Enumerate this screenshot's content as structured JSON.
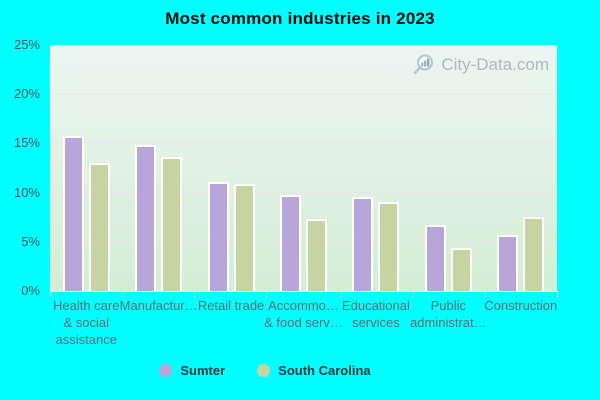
{
  "title": "Most common industries in 2023",
  "watermark": "City-Data.com",
  "colors": {
    "background": "#00ffff",
    "plot_gradient_top": "#ecf5f2",
    "plot_gradient_bottom": "#d3eed5",
    "gridline": "#ece3ee",
    "bar_border": "#ffffff",
    "sumter": "#b8a5da",
    "south_carolina": "#c7d3a1",
    "y_label_text": "#46565f",
    "x_label_text": "#5e6e75",
    "legend_text": "#2e3a40",
    "watermark_text": "#aab6bd"
  },
  "y_axis": {
    "max": 25,
    "ticks": [
      {
        "label": "0%",
        "value": 0
      },
      {
        "label": "5%",
        "value": 5
      },
      {
        "label": "10%",
        "value": 10
      },
      {
        "label": "15%",
        "value": 15
      },
      {
        "label": "20%",
        "value": 20
      },
      {
        "label": "25%",
        "value": 25
      }
    ]
  },
  "legend": {
    "items": [
      {
        "label": "Sumter",
        "color": "#b8a5da"
      },
      {
        "label": "South Carolina",
        "color": "#c7d3a1"
      }
    ]
  },
  "chart_data": {
    "type": "bar",
    "title": "Most common industries in 2023",
    "categories": [
      "Health care & social assistance",
      "Manufactur…",
      "Retail trade",
      "Accommo… & food serv…",
      "Educational services",
      "Public administrat…",
      "Construction"
    ],
    "categories_display": [
      [
        "Health care",
        "& social",
        "assistance"
      ],
      [
        "Manufactur…"
      ],
      [
        "Retail trade"
      ],
      [
        "Accommo…",
        "& food serv…"
      ],
      [
        "Educational",
        "services"
      ],
      [
        "Public",
        "administrat…"
      ],
      [
        "Construction"
      ]
    ],
    "series": [
      {
        "name": "Sumter",
        "color": "#b8a5da",
        "values": [
          15.5,
          14.6,
          10.9,
          9.6,
          9.4,
          6.5,
          5.5
        ]
      },
      {
        "name": "South Carolina",
        "color": "#c7d3a1",
        "values": [
          12.8,
          13.4,
          10.7,
          7.1,
          8.8,
          4.2,
          7.3
        ]
      }
    ],
    "xlabel": "",
    "ylabel": "",
    "ylim": [
      0,
      25
    ],
    "grid": true,
    "legend_position": "bottom"
  }
}
